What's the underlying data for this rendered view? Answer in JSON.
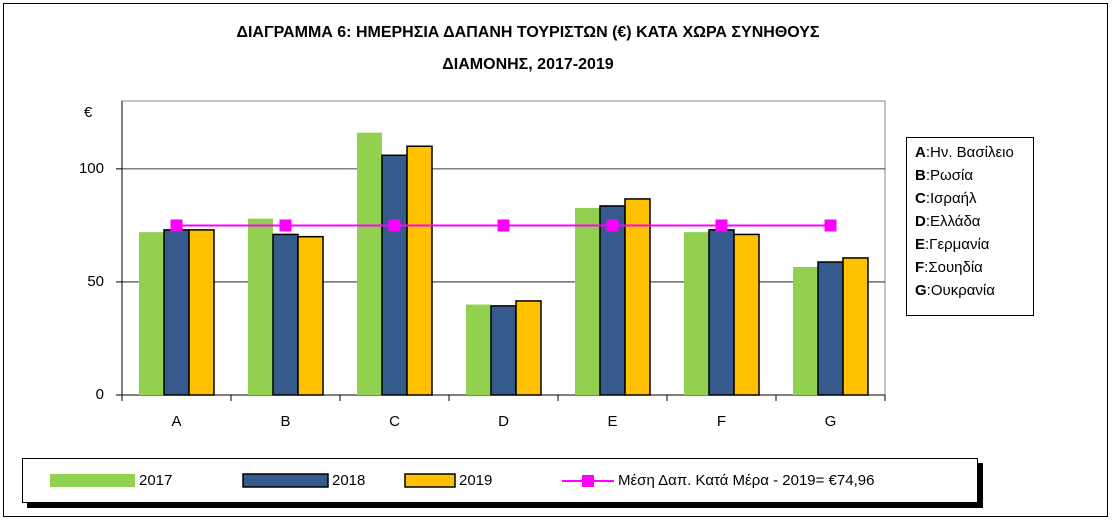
{
  "chart_data": {
    "type": "bar",
    "title_lines": [
      "ΔΙΑΓΡΑΜΜΑ 6: ΗΜΕΡΗΣΙΑ ΔΑΠΑΝΗ ΤΟΥΡΙΣΤΩΝ (€) ΚΑΤΑ ΧΩΡΑ ΣΥΝΗΘΟΥΣ",
      "ΔΙΑΜΟΝΗΣ,  2017-2019"
    ],
    "y_label": "€",
    "categories": [
      "A",
      "B",
      "C",
      "D",
      "E",
      "F",
      "G"
    ],
    "series": [
      {
        "name": "2017",
        "color": "#92d050",
        "values": [
          72,
          78,
          116,
          40,
          82.7,
          72,
          56.6
        ]
      },
      {
        "name": "2018",
        "color": "#355a8c",
        "values": [
          73,
          71,
          106,
          39.4,
          83.6,
          73,
          58.8
        ]
      },
      {
        "name": "2019",
        "color": "#ffc000",
        "values": [
          73,
          70,
          110,
          41.6,
          86.7,
          71,
          60.6
        ]
      },
      {
        "name": "Μέση Δαπ. Κατά Μέρα - 2019= €74,96",
        "color": "#ff00ff",
        "type": "line",
        "values": [
          74.96,
          74.96,
          74.96,
          74.96,
          74.96,
          74.96,
          74.96
        ]
      }
    ],
    "ylim": [
      0,
      130
    ],
    "yticks": [
      0,
      50,
      100
    ],
    "grid": true,
    "key": [
      {
        "code": "A",
        "label": ":Ην. Βασίλειο"
      },
      {
        "code": "B",
        "label": ":Ρωσία"
      },
      {
        "code": "C",
        "label": ":Ισραήλ"
      },
      {
        "code": "D",
        "label": ":Ελλάδα"
      },
      {
        "code": "E",
        "label": ":Γερμανία"
      },
      {
        "code": "F",
        "label": ":Σουηδία"
      },
      {
        "code": "G",
        "label": ":Ουκρανία"
      }
    ]
  }
}
